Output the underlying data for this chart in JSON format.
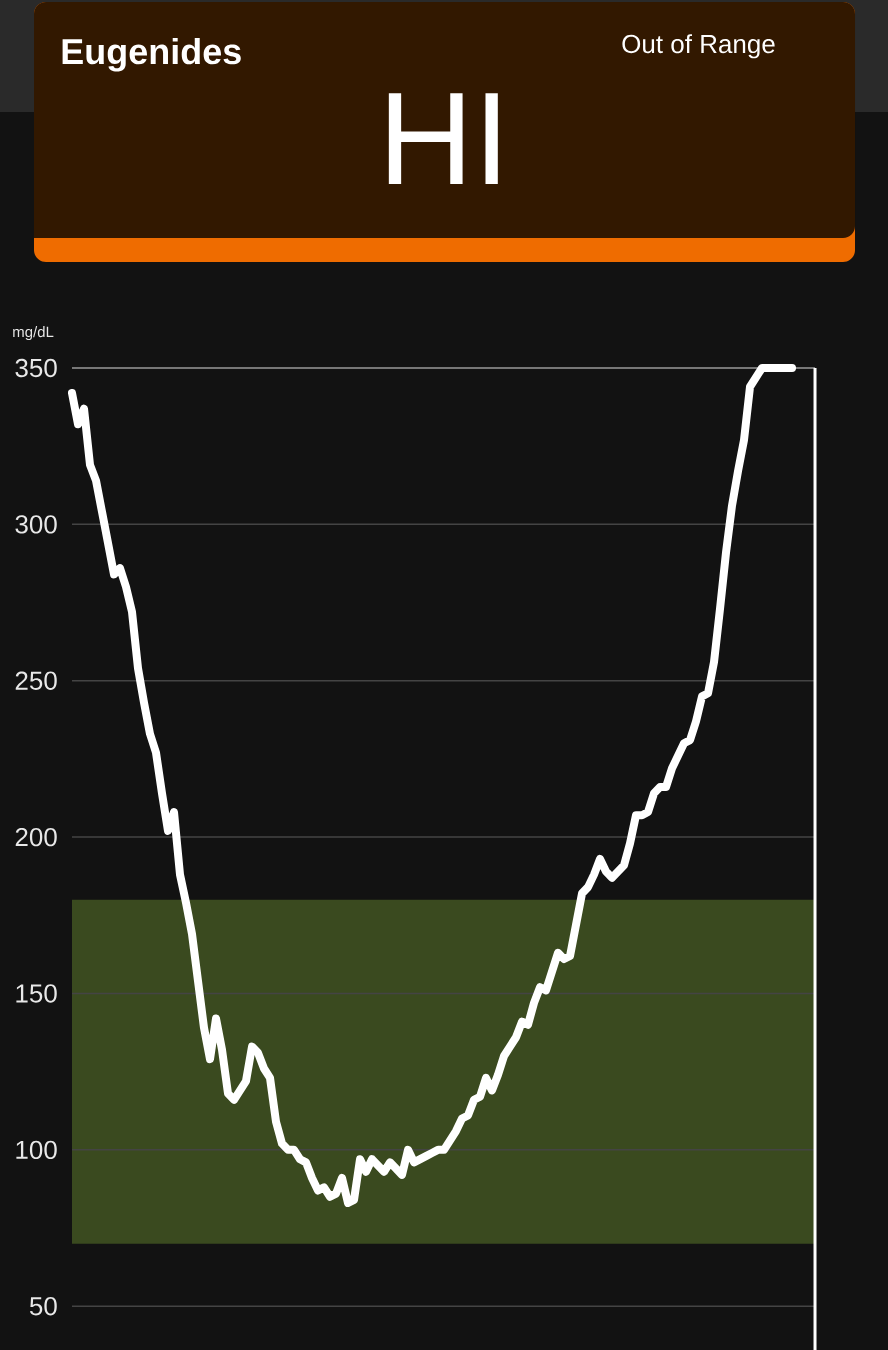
{
  "chart_data": {
    "type": "line",
    "title": "Eugenides",
    "subtitle": "HI",
    "annotations": [
      "Out of Range"
    ],
    "ylabel": "mg/dL",
    "categories": [
      null,
      null,
      null,
      null,
      null,
      null,
      null,
      null,
      null,
      null,
      null,
      null,
      null,
      null,
      null,
      null,
      null,
      null,
      null,
      null,
      null,
      null,
      null,
      null,
      null,
      null,
      null,
      null,
      null,
      null,
      null,
      null,
      null,
      null,
      null,
      null,
      null,
      null,
      null,
      null,
      null,
      null,
      null,
      null,
      null,
      null,
      null,
      null,
      null,
      null,
      null,
      null,
      null,
      null,
      null,
      null,
      null,
      null,
      null,
      null,
      null,
      null,
      null,
      null,
      null,
      null,
      null,
      null,
      null,
      null,
      null,
      null,
      null,
      null,
      null,
      null,
      null,
      null,
      null,
      null,
      null,
      null,
      null,
      null,
      null,
      null,
      null,
      null,
      null,
      null,
      null,
      null,
      null,
      null,
      null,
      null,
      null,
      null,
      null,
      null,
      null,
      null,
      null,
      null,
      null,
      null,
      null,
      null,
      null,
      null,
      null,
      null,
      null,
      null,
      null,
      null,
      null,
      null,
      null,
      null,
      null
    ],
    "values": [
      342,
      332,
      337,
      319,
      314,
      304,
      294,
      284,
      286,
      280,
      272,
      254,
      243,
      233,
      227,
      214,
      202,
      208,
      188,
      179,
      169,
      154,
      139,
      129,
      142,
      132,
      118,
      116,
      119,
      122,
      133,
      131,
      126,
      123,
      109,
      102,
      100,
      100,
      97,
      96,
      91,
      87,
      88,
      85,
      86,
      91,
      83,
      84,
      97,
      93,
      97,
      95,
      93,
      96,
      94,
      92,
      100,
      96,
      97,
      98,
      99,
      100,
      100,
      103,
      106,
      110,
      111,
      116,
      117,
      123,
      119,
      124,
      130,
      133,
      136,
      141,
      140,
      147,
      152,
      151,
      157,
      163,
      161,
      162,
      172,
      182,
      184,
      188,
      193,
      189,
      187,
      189,
      191,
      198,
      207,
      207,
      208,
      214,
      216,
      216,
      222,
      226,
      230,
      231,
      237,
      245,
      246,
      256,
      273,
      291,
      306,
      317,
      327,
      344,
      347,
      350,
      350,
      350,
      350,
      350,
      350
    ],
    "color": "#ffffff",
    "line_style": "solid",
    "ylim": [
      36,
      350
    ],
    "yticks": [
      50,
      100,
      150,
      200,
      250,
      300,
      350
    ],
    "grid": "y",
    "tick_labels": "y",
    "bands": [
      {
        "axis": "y",
        "from": 70,
        "to": 180,
        "color": "#3a4a1f"
      }
    ]
  }
}
